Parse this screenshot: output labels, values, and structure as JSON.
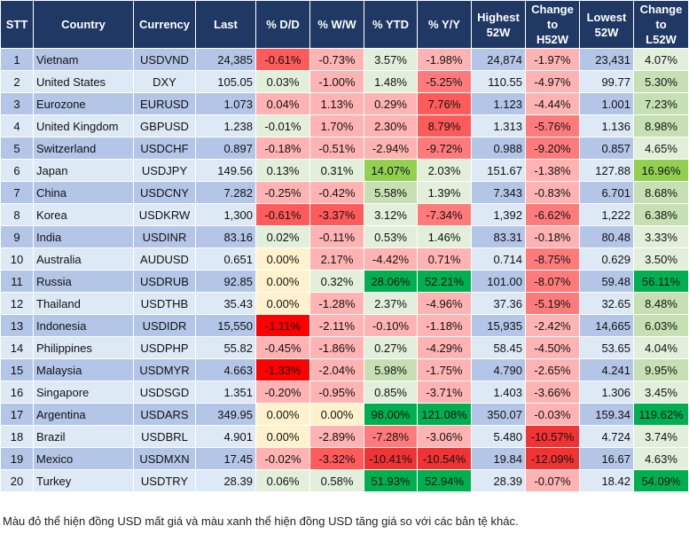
{
  "headers": [
    "STT",
    "Country",
    "Currency",
    "Last",
    "% D/D",
    "% W/W",
    "% YTD",
    "% Y/Y",
    "Highest\n52W",
    "Change\nto\nH52W",
    "Lowest\n52W",
    "Change\nto\nL52W"
  ],
  "color_legend": {
    "L": "#ffb3b3",
    "M": "#ff7b7b",
    "S": "#ff5b5b",
    "D": "#f03434",
    "R": "#ff0000",
    "G1": "#e2efda",
    "G2": "#c6e0b4",
    "G3": "#92d050",
    "G4": "#00b050",
    "Y": "#fff2cc",
    "header": "#1f3864",
    "band_odd": "#b4c6e7",
    "band_even": "#dde9f5"
  },
  "rows": [
    {
      "cells": [
        "1",
        "Vietnam",
        "USDVND",
        "24,385",
        "-0.61%",
        "-0.73%",
        "3.57%",
        "-1.98%",
        "24,874",
        "-1.97%",
        "23,431",
        "4.07%"
      ],
      "colors": [
        "S",
        "L",
        "G1",
        "L",
        "L",
        "G1"
      ]
    },
    {
      "cells": [
        "2",
        "United States",
        "DXY",
        "105.05",
        "0.03%",
        "-1.00%",
        "1.48%",
        "-5.25%",
        "110.55",
        "-4.97%",
        "99.77",
        "5.30%"
      ],
      "colors": [
        "G1",
        "L",
        "G1",
        "M",
        "L",
        "G2"
      ]
    },
    {
      "cells": [
        "3",
        "Eurozone",
        "EURUSD",
        "1.073",
        "0.04%",
        "1.13%",
        "0.29%",
        "7.76%",
        "1.123",
        "-4.44%",
        "1.001",
        "7.23%"
      ],
      "colors": [
        "L",
        "L",
        "L",
        "S",
        "L",
        "G2"
      ]
    },
    {
      "cells": [
        "4",
        "United Kingdom",
        "GBPUSD",
        "1.238",
        "-0.01%",
        "1.70%",
        "2.30%",
        "8.79%",
        "1.313",
        "-5.76%",
        "1.136",
        "8.98%"
      ],
      "colors": [
        "G1",
        "L",
        "L",
        "S",
        "M",
        "G2"
      ]
    },
    {
      "cells": [
        "5",
        "Switzerland",
        "USDCHF",
        "0.897",
        "-0.18%",
        "-0.51%",
        "-2.94%",
        "-9.72%",
        "0.988",
        "-9.20%",
        "0.857",
        "4.65%"
      ],
      "colors": [
        "L",
        "L",
        "L",
        "M",
        "M",
        "G1"
      ]
    },
    {
      "cells": [
        "6",
        "Japan",
        "USDJPY",
        "149.56",
        "0.13%",
        "0.31%",
        "14.07%",
        "2.03%",
        "151.67",
        "-1.38%",
        "127.88",
        "16.96%"
      ],
      "colors": [
        "G1",
        "G1",
        "G3",
        "G1",
        "L",
        "G3"
      ]
    },
    {
      "cells": [
        "7",
        "China",
        "USDCNY",
        "7.282",
        "-0.25%",
        "-0.42%",
        "5.58%",
        "1.39%",
        "7.343",
        "-0.83%",
        "6.701",
        "8.68%"
      ],
      "colors": [
        "L",
        "L",
        "G2",
        "G1",
        "L",
        "G2"
      ]
    },
    {
      "cells": [
        "8",
        "Korea",
        "USDKRW",
        "1,300",
        "-0.61%",
        "-3.37%",
        "3.12%",
        "-7.34%",
        "1,392",
        "-6.62%",
        "1,222",
        "6.38%"
      ],
      "colors": [
        "S",
        "S",
        "G1",
        "M",
        "M",
        "G2"
      ]
    },
    {
      "cells": [
        "9",
        "India",
        "USDINR",
        "83.16",
        "0.02%",
        "-0.11%",
        "0.53%",
        "1.46%",
        "83.31",
        "-0.18%",
        "80.48",
        "3.33%"
      ],
      "colors": [
        "G1",
        "L",
        "G1",
        "G1",
        "L",
        "G1"
      ]
    },
    {
      "cells": [
        "10",
        "Australia",
        "AUDUSD",
        "0.651",
        "0.00%",
        "2.17%",
        "-4.42%",
        "0.71%",
        "0.714",
        "-8.75%",
        "0.629",
        "3.50%"
      ],
      "colors": [
        "Y",
        "L",
        "L",
        "L",
        "M",
        "G1"
      ]
    },
    {
      "cells": [
        "11",
        "Russia",
        "USDRUB",
        "92.85",
        "0.00%",
        "0.32%",
        "28.06%",
        "52.21%",
        "101.00",
        "-8.07%",
        "59.48",
        "56.11%"
      ],
      "colors": [
        "Y",
        "G1",
        "G4",
        "G4",
        "M",
        "G4"
      ]
    },
    {
      "cells": [
        "12",
        "Thailand",
        "USDTHB",
        "35.43",
        "0.00%",
        "-1.28%",
        "2.37%",
        "-4.96%",
        "37.36",
        "-5.19%",
        "32.65",
        "8.48%"
      ],
      "colors": [
        "Y",
        "L",
        "G1",
        "L",
        "M",
        "G2"
      ]
    },
    {
      "cells": [
        "13",
        "Indonesia",
        "USDIDR",
        "15,550",
        "-1.11%",
        "-2.11%",
        "-0.10%",
        "-1.18%",
        "15,935",
        "-2.42%",
        "14,665",
        "6.03%"
      ],
      "colors": [
        "R",
        "L",
        "L",
        "L",
        "L",
        "G2"
      ]
    },
    {
      "cells": [
        "14",
        "Philippines",
        "USDPHP",
        "55.82",
        "-0.45%",
        "-1.86%",
        "0.27%",
        "-4.29%",
        "58.45",
        "-4.50%",
        "53.65",
        "4.04%"
      ],
      "colors": [
        "L",
        "L",
        "G1",
        "L",
        "L",
        "G1"
      ]
    },
    {
      "cells": [
        "15",
        "Malaysia",
        "USDMYR",
        "4.663",
        "-1.33%",
        "-2.04%",
        "5.98%",
        "-1.75%",
        "4.790",
        "-2.65%",
        "4.241",
        "9.95%"
      ],
      "colors": [
        "R",
        "L",
        "G2",
        "L",
        "L",
        "G2"
      ]
    },
    {
      "cells": [
        "16",
        "Singapore",
        "USDSGD",
        "1.351",
        "-0.20%",
        "-0.95%",
        "0.85%",
        "-3.71%",
        "1.403",
        "-3.66%",
        "1.306",
        "3.45%"
      ],
      "colors": [
        "L",
        "L",
        "G1",
        "L",
        "L",
        "G1"
      ]
    },
    {
      "cells": [
        "17",
        "Argentina",
        "USDARS",
        "349.95",
        "0.00%",
        "0.00%",
        "98.00%",
        "121.08%",
        "350.07",
        "-0.03%",
        "159.34",
        "119.62%"
      ],
      "colors": [
        "Y",
        "Y",
        "G4",
        "G4",
        "L",
        "G4"
      ]
    },
    {
      "cells": [
        "18",
        "Brazil",
        "USDBRL",
        "4.901",
        "0.00%",
        "-2.89%",
        "-7.28%",
        "-3.06%",
        "5.480",
        "-10.57%",
        "4.724",
        "3.74%"
      ],
      "colors": [
        "Y",
        "L",
        "M",
        "L",
        "D",
        "G1"
      ]
    },
    {
      "cells": [
        "19",
        "Mexico",
        "USDMXN",
        "17.45",
        "-0.02%",
        "-3.32%",
        "-10.41%",
        "-10.54%",
        "19.84",
        "-12.09%",
        "16.67",
        "4.63%"
      ],
      "colors": [
        "L",
        "S",
        "D",
        "D",
        "D",
        "G1"
      ]
    },
    {
      "cells": [
        "20",
        "Turkey",
        "USDTRY",
        "28.39",
        "0.06%",
        "0.58%",
        "51.93%",
        "52.94%",
        "28.39",
        "-0.07%",
        "18.42",
        "54.09%"
      ],
      "colors": [
        "G1",
        "G1",
        "G4",
        "G4",
        "L",
        "G4"
      ]
    }
  ],
  "note": "Màu đỏ thể hiện đồng USD mất giá và màu xanh thể hiện đồng USD tăng giá so với các bản tệ khác."
}
